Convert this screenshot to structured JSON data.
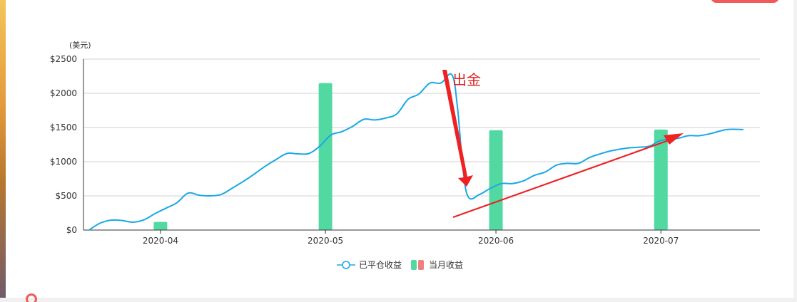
{
  "chart_data": {
    "type": "bar",
    "y_unit_label": "(美元)",
    "ylim": [
      0,
      2500
    ],
    "yticks": [
      "$0",
      "$500",
      "$1000",
      "$1500",
      "$2000",
      "$2500"
    ],
    "ytick_values": [
      0,
      500,
      1000,
      1500,
      2000,
      2500
    ],
    "xticks": [
      "2020-04",
      "2020-05",
      "2020-06",
      "2020-07"
    ],
    "xtick_dates": [
      "2020-04-01",
      "2020-05-01",
      "2020-06-01",
      "2020-07-01"
    ],
    "x_range": [
      "2020-03-18",
      "2020-07-19"
    ],
    "grid": true,
    "legend_position": "bottom-center",
    "series": [
      {
        "name": "已平仓收益",
        "type": "line",
        "color": "#1aa8e6",
        "points": [
          [
            "2020-03-19",
            0
          ],
          [
            "2020-03-21",
            100
          ],
          [
            "2020-03-23",
            145
          ],
          [
            "2020-03-25",
            140
          ],
          [
            "2020-03-27",
            115
          ],
          [
            "2020-03-29",
            150
          ],
          [
            "2020-03-31",
            240
          ],
          [
            "2020-04-02",
            320
          ],
          [
            "2020-04-04",
            400
          ],
          [
            "2020-04-06",
            540
          ],
          [
            "2020-04-08",
            510
          ],
          [
            "2020-04-10",
            500
          ],
          [
            "2020-04-12",
            520
          ],
          [
            "2020-04-14",
            610
          ],
          [
            "2020-04-17",
            760
          ],
          [
            "2020-04-20",
            930
          ],
          [
            "2020-04-22",
            1030
          ],
          [
            "2020-04-24",
            1120
          ],
          [
            "2020-04-26",
            1115
          ],
          [
            "2020-04-28",
            1120
          ],
          [
            "2020-04-30",
            1230
          ],
          [
            "2020-05-02",
            1390
          ],
          [
            "2020-05-04",
            1440
          ],
          [
            "2020-05-06",
            1520
          ],
          [
            "2020-05-08",
            1620
          ],
          [
            "2020-05-10",
            1610
          ],
          [
            "2020-05-12",
            1640
          ],
          [
            "2020-05-14",
            1700
          ],
          [
            "2020-05-16",
            1910
          ],
          [
            "2020-05-18",
            1990
          ],
          [
            "2020-05-20",
            2150
          ],
          [
            "2020-05-22",
            2150
          ],
          [
            "2020-05-24",
            2270
          ],
          [
            "2020-05-25",
            1800
          ],
          [
            "2020-05-26",
            900
          ],
          [
            "2020-05-27",
            480
          ],
          [
            "2020-05-29",
            520
          ],
          [
            "2020-05-31",
            610
          ],
          [
            "2020-06-02",
            680
          ],
          [
            "2020-06-04",
            680
          ],
          [
            "2020-06-06",
            720
          ],
          [
            "2020-06-08",
            800
          ],
          [
            "2020-06-10",
            850
          ],
          [
            "2020-06-12",
            950
          ],
          [
            "2020-06-14",
            975
          ],
          [
            "2020-06-16",
            975
          ],
          [
            "2020-06-18",
            1060
          ],
          [
            "2020-06-20",
            1115
          ],
          [
            "2020-06-22",
            1160
          ],
          [
            "2020-06-25",
            1200
          ],
          [
            "2020-06-27",
            1210
          ],
          [
            "2020-06-29",
            1230
          ],
          [
            "2020-07-01",
            1310
          ],
          [
            "2020-07-04",
            1340
          ],
          [
            "2020-07-06",
            1380
          ],
          [
            "2020-07-08",
            1380
          ],
          [
            "2020-07-10",
            1410
          ],
          [
            "2020-07-13",
            1470
          ],
          [
            "2020-07-16",
            1470
          ]
        ]
      },
      {
        "name": "当月收益",
        "type": "bar",
        "color": "#52d9a2",
        "negative_color": "#f08080",
        "bars": [
          {
            "x": "2020-04-01",
            "value": 120
          },
          {
            "x": "2020-05-01",
            "value": 2150
          },
          {
            "x": "2020-06-01",
            "value": 1460
          },
          {
            "x": "2020-07-01",
            "value": 1470
          }
        ]
      }
    ],
    "annotations": [
      {
        "text": "出金",
        "color": "#e02020"
      }
    ]
  }
}
